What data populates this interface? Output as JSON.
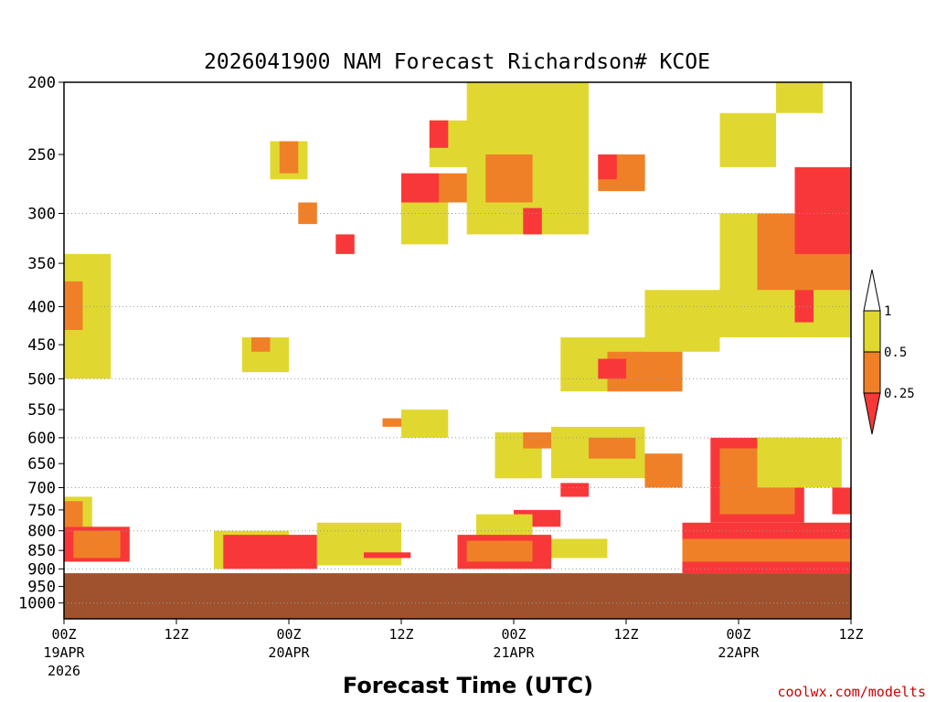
{
  "chart_data": {
    "type": "heatmap",
    "title": "2026041900 NAM Forecast Richardson# KCOE",
    "xlabel": "Forecast Time (UTC)",
    "ylabel": "",
    "credit": "coolwx.com/modelts",
    "y_axis": {
      "label_values": [
        200,
        250,
        300,
        350,
        400,
        450,
        500,
        550,
        600,
        650,
        700,
        750,
        800,
        850,
        900,
        950,
        1000
      ],
      "labels": [
        "200",
        "250",
        "300",
        "350",
        "400",
        "450",
        "500",
        "550",
        "600",
        "650",
        "700",
        "750",
        "800",
        "850",
        "900",
        "950",
        "1000"
      ],
      "gridlines": [
        300,
        400,
        500,
        600,
        700,
        800,
        900,
        1000
      ],
      "range": [
        200,
        1050
      ],
      "scale": "log",
      "inverted": true
    },
    "x_axis": {
      "range_hours": [
        0,
        84
      ],
      "ticks": [
        {
          "hour": 0,
          "label": "00Z",
          "date": "19APR",
          "year": "2026"
        },
        {
          "hour": 12,
          "label": "12Z",
          "date": "",
          "year": ""
        },
        {
          "hour": 24,
          "label": "00Z",
          "date": "20APR",
          "year": ""
        },
        {
          "hour": 36,
          "label": "12Z",
          "date": "",
          "year": ""
        },
        {
          "hour": 48,
          "label": "00Z",
          "date": "21APR",
          "year": ""
        },
        {
          "hour": 60,
          "label": "12Z",
          "date": "",
          "year": ""
        },
        {
          "hour": 72,
          "label": "00Z",
          "date": "22APR",
          "year": ""
        },
        {
          "hour": 84,
          "label": "12Z",
          "date": "",
          "year": ""
        }
      ]
    },
    "legend": {
      "placement": "right",
      "bins": [
        {
          "range": "<0.25",
          "color": "#f83838"
        },
        {
          "range": "0.25-0.5",
          "color": "#f08028"
        },
        {
          "range": "0.5-1",
          "color": "#e0d830"
        },
        {
          "range": ">1",
          "color": "#ffffff"
        }
      ],
      "tick_labels": [
        "1",
        "0.5",
        "0.25"
      ]
    },
    "ground": {
      "surface_pressure_hPa": 912,
      "color": "#a0522d"
    },
    "regions": [
      {
        "bin": "0.5-1",
        "hour": [
          0,
          3
        ],
        "p": [
          720,
          800
        ]
      },
      {
        "bin": "0.25-0.5",
        "hour": [
          0,
          2
        ],
        "p": [
          730,
          790
        ]
      },
      {
        "bin": "<0.25",
        "hour": [
          0,
          7
        ],
        "p": [
          790,
          880
        ]
      },
      {
        "bin": "0.25-0.5",
        "hour": [
          1,
          6
        ],
        "p": [
          800,
          870
        ]
      },
      {
        "bin": "0.5-1",
        "hour": [
          0,
          5
        ],
        "p": [
          340,
          500
        ]
      },
      {
        "bin": "0.25-0.5",
        "hour": [
          0,
          2
        ],
        "p": [
          370,
          430
        ]
      },
      {
        "bin": "0.5-1",
        "hour": [
          16,
          24
        ],
        "p": [
          800,
          900
        ]
      },
      {
        "bin": "<0.25",
        "hour": [
          17,
          27
        ],
        "p": [
          810,
          900
        ]
      },
      {
        "bin": "0.5-1",
        "hour": [
          27,
          36
        ],
        "p": [
          780,
          890
        ]
      },
      {
        "bin": "<0.25",
        "hour": [
          32,
          37
        ],
        "p": [
          855,
          870
        ]
      },
      {
        "bin": "0.5-1",
        "hour": [
          19,
          24
        ],
        "p": [
          440,
          490
        ]
      },
      {
        "bin": "0.25-0.5",
        "hour": [
          20,
          22
        ],
        "p": [
          440,
          460
        ]
      },
      {
        "bin": "0.5-1",
        "hour": [
          22,
          26
        ],
        "p": [
          240,
          270
        ]
      },
      {
        "bin": "0.25-0.5",
        "hour": [
          23,
          25
        ],
        "p": [
          240,
          265
        ]
      },
      {
        "bin": "<0.25",
        "hour": [
          29,
          31
        ],
        "p": [
          320,
          340
        ]
      },
      {
        "bin": "0.25-0.5",
        "hour": [
          25,
          27
        ],
        "p": [
          290,
          310
        ]
      },
      {
        "bin": "0.5-1",
        "hour": [
          36,
          41
        ],
        "p": [
          280,
          330
        ]
      },
      {
        "bin": "<0.25",
        "hour": [
          36,
          40
        ],
        "p": [
          265,
          290
        ]
      },
      {
        "bin": "0.25-0.5",
        "hour": [
          40,
          45
        ],
        "p": [
          265,
          290
        ]
      },
      {
        "bin": "0.5-1",
        "hour": [
          39,
          44
        ],
        "p": [
          225,
          260
        ]
      },
      {
        "bin": "<0.25",
        "hour": [
          39,
          41
        ],
        "p": [
          225,
          245
        ]
      },
      {
        "bin": "0.5-1",
        "hour": [
          43,
          56
        ],
        "p": [
          200,
          320
        ]
      },
      {
        "bin": "0.25-0.5",
        "hour": [
          45,
          50
        ],
        "p": [
          250,
          290
        ]
      },
      {
        "bin": "<0.25",
        "hour": [
          49,
          51
        ],
        "p": [
          295,
          320
        ]
      },
      {
        "bin": "0.25-0.5",
        "hour": [
          57,
          62
        ],
        "p": [
          250,
          280
        ]
      },
      {
        "bin": "<0.25",
        "hour": [
          57,
          59
        ],
        "p": [
          250,
          270
        ]
      },
      {
        "bin": "0.5-1",
        "hour": [
          36,
          41
        ],
        "p": [
          550,
          600
        ]
      },
      {
        "bin": "0.25-0.5",
        "hour": [
          34,
          36
        ],
        "p": [
          565,
          580
        ]
      },
      {
        "bin": "0.5-1",
        "hour": [
          46,
          51
        ],
        "p": [
          590,
          680
        ]
      },
      {
        "bin": "0.25-0.5",
        "hour": [
          49,
          54
        ],
        "p": [
          590,
          620
        ]
      },
      {
        "bin": "<0.25",
        "hour": [
          48,
          53
        ],
        "p": [
          750,
          790
        ]
      },
      {
        "bin": "0.5-1",
        "hour": [
          44,
          50
        ],
        "p": [
          760,
          820
        ]
      },
      {
        "bin": "<0.25",
        "hour": [
          42,
          52
        ],
        "p": [
          810,
          900
        ]
      },
      {
        "bin": "0.25-0.5",
        "hour": [
          43,
          50
        ],
        "p": [
          825,
          880
        ]
      },
      {
        "bin": "0.5-1",
        "hour": [
          52,
          58
        ],
        "p": [
          820,
          870
        ]
      },
      {
        "bin": "0.5-1",
        "hour": [
          52,
          62
        ],
        "p": [
          580,
          680
        ]
      },
      {
        "bin": "0.25-0.5",
        "hour": [
          56,
          61
        ],
        "p": [
          600,
          640
        ]
      },
      {
        "bin": "<0.25",
        "hour": [
          53,
          56
        ],
        "p": [
          690,
          720
        ]
      },
      {
        "bin": "0.5-1",
        "hour": [
          53,
          66
        ],
        "p": [
          440,
          520
        ]
      },
      {
        "bin": "0.25-0.5",
        "hour": [
          58,
          66
        ],
        "p": [
          460,
          520
        ]
      },
      {
        "bin": "<0.25",
        "hour": [
          57,
          60
        ],
        "p": [
          470,
          500
        ]
      },
      {
        "bin": "0.5-1",
        "hour": [
          62,
          70
        ],
        "p": [
          380,
          460
        ]
      },
      {
        "bin": "0.25-0.5",
        "hour": [
          62,
          66
        ],
        "p": [
          630,
          700
        ]
      },
      {
        "bin": "<0.25",
        "hour": [
          66,
          84
        ],
        "p": [
          780,
          912
        ]
      },
      {
        "bin": "0.25-0.5",
        "hour": [
          66,
          84
        ],
        "p": [
          820,
          880
        ]
      },
      {
        "bin": "<0.25",
        "hour": [
          69,
          79
        ],
        "p": [
          600,
          780
        ]
      },
      {
        "bin": "0.25-0.5",
        "hour": [
          70,
          78
        ],
        "p": [
          620,
          760
        ]
      },
      {
        "bin": "0.5-1",
        "hour": [
          74,
          83
        ],
        "p": [
          600,
          700
        ]
      },
      {
        "bin": "<0.25",
        "hour": [
          82,
          84
        ],
        "p": [
          700,
          760
        ]
      },
      {
        "bin": "0.5-1",
        "hour": [
          70,
          84
        ],
        "p": [
          300,
          440
        ]
      },
      {
        "bin": "0.25-0.5",
        "hour": [
          74,
          84
        ],
        "p": [
          300,
          380
        ]
      },
      {
        "bin": "<0.25",
        "hour": [
          78,
          84
        ],
        "p": [
          260,
          340
        ]
      },
      {
        "bin": "<0.25",
        "hour": [
          78,
          80
        ],
        "p": [
          380,
          420
        ]
      },
      {
        "bin": "0.5-1",
        "hour": [
          76,
          81
        ],
        "p": [
          200,
          220
        ]
      },
      {
        "bin": "0.5-1",
        "hour": [
          70,
          76
        ],
        "p": [
          220,
          260
        ]
      }
    ]
  }
}
